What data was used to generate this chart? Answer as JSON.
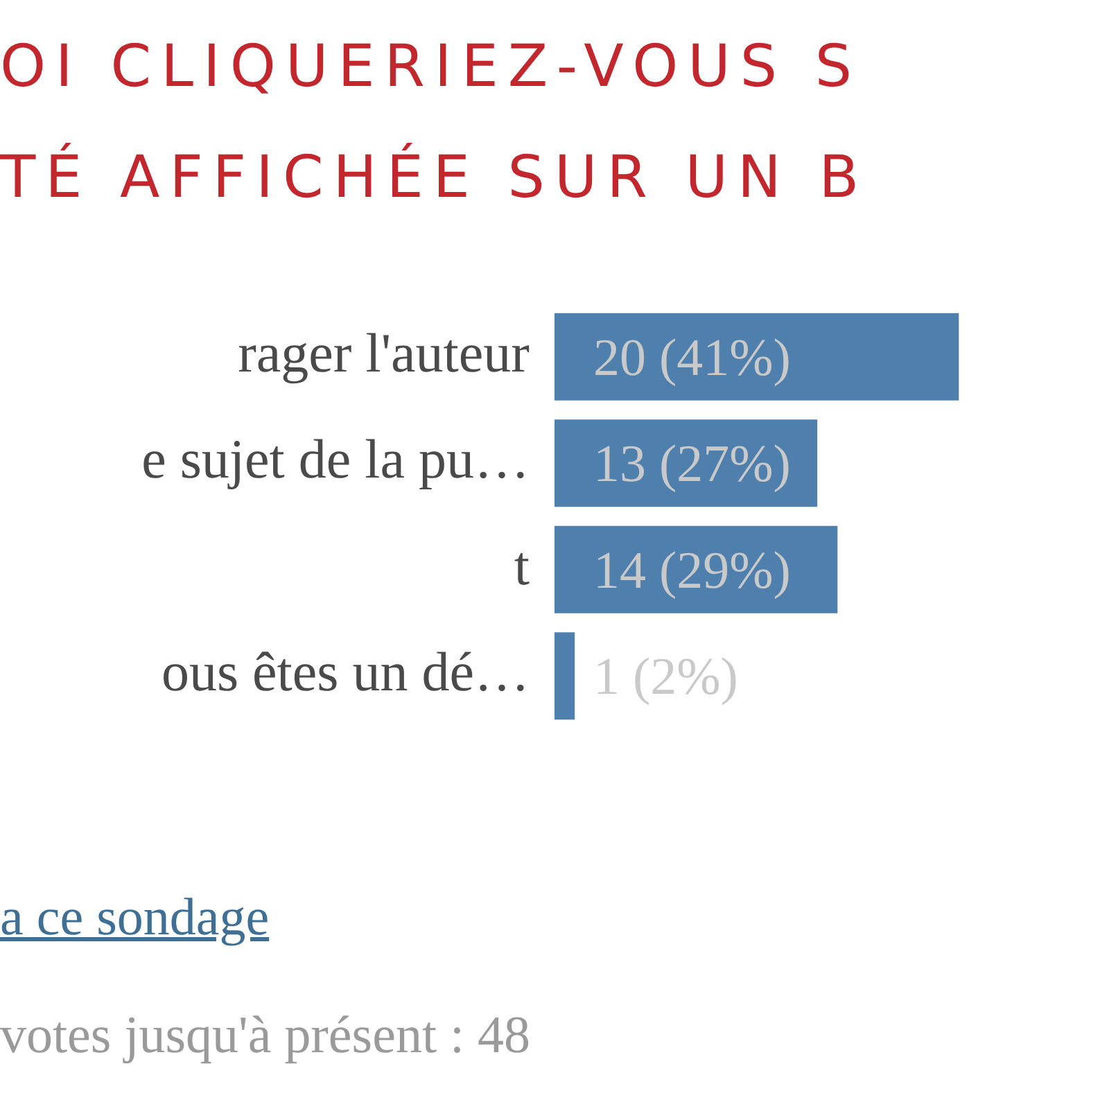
{
  "chart_data": {
    "type": "bar",
    "orientation": "horizontal",
    "title": "OI CLIQUERIEZ-VOUS S\nTÉ AFFICHÉE SUR UN B",
    "categories": [
      "rager l'auteur",
      "e sujet de la pu…",
      "t",
      "ous êtes un dé…"
    ],
    "values": [
      20,
      13,
      14,
      1
    ],
    "value_labels": [
      "20 (41%)",
      "13 (27%)",
      "14 (29%)",
      "1 (2%)"
    ],
    "color": "#4f80ad",
    "tick_labels": "y",
    "annotations": [
      "a ce sondage",
      "votes jusqu'à présent : 48"
    ]
  }
}
